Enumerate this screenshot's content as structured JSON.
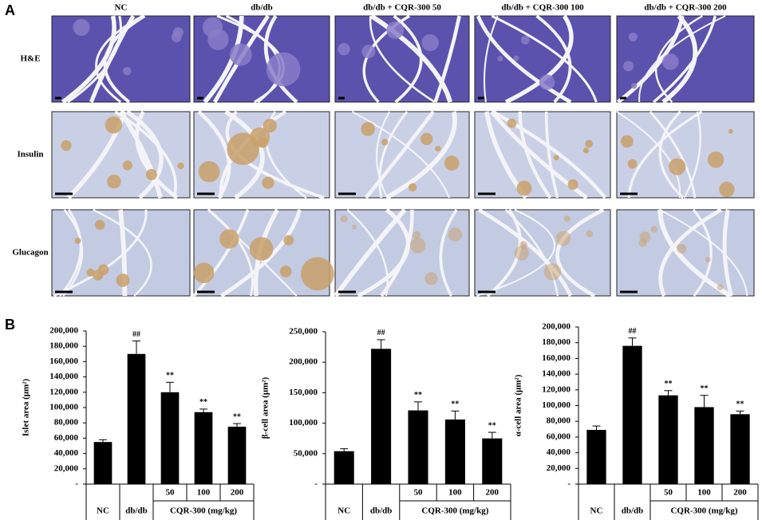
{
  "panel_a": {
    "label": "A",
    "columns": [
      "NC",
      "db/db",
      "db/db + CQR-300 50",
      "db/db + CQR-300 100",
      "db/db + CQR-300 200"
    ],
    "rows": [
      "H&E",
      "Insulin",
      "Glucagon"
    ]
  },
  "panel_b_label": "B",
  "chart_data": [
    {
      "type": "bar",
      "ylabel": "Islet area (μm²)",
      "color": "#000000",
      "categories": [
        "NC",
        "db/db",
        "50",
        "100",
        "200"
      ],
      "group_label": "CQR-300 (mg/kg)",
      "values": [
        55000,
        170000,
        120000,
        94000,
        75000
      ],
      "errors": [
        3000,
        17000,
        13000,
        4000,
        4000
      ],
      "annotations": [
        null,
        "##",
        "**",
        "**",
        "**"
      ],
      "ylim": [
        0,
        200000
      ],
      "yticks": [
        {
          "value": 0,
          "label": "-"
        },
        {
          "value": 20000,
          "label": "20,000"
        },
        {
          "value": 40000,
          "label": "40,000"
        },
        {
          "value": 60000,
          "label": "60,000"
        },
        {
          "value": 80000,
          "label": "80,000"
        },
        {
          "value": 100000,
          "label": "100,000"
        },
        {
          "value": 120000,
          "label": "120,000"
        },
        {
          "value": 140000,
          "label": "140,000"
        },
        {
          "value": 160000,
          "label": "160,000"
        },
        {
          "value": 180000,
          "label": "180,000"
        },
        {
          "value": 200000,
          "label": "200,000"
        }
      ]
    },
    {
      "type": "bar",
      "ylabel": "β-cell area (μm²)",
      "color": "#000000",
      "categories": [
        "NC",
        "db/db",
        "50",
        "100",
        "200"
      ],
      "group_label": "CQR-300 (mg/kg)",
      "values": [
        54000,
        222000,
        121000,
        106000,
        75000
      ],
      "errors": [
        4000,
        15000,
        14000,
        14000,
        10000
      ],
      "annotations": [
        null,
        "##",
        "**",
        "**",
        "**"
      ],
      "ylim": [
        0,
        250000
      ],
      "yticks": [
        {
          "value": 0,
          "label": "-"
        },
        {
          "value": 50000,
          "label": "50,000"
        },
        {
          "value": 100000,
          "label": "100,000"
        },
        {
          "value": 150000,
          "label": "150,000"
        },
        {
          "value": 200000,
          "label": "200,000"
        },
        {
          "value": 250000,
          "label": "250,000"
        }
      ]
    },
    {
      "type": "bar",
      "ylabel": "α-cell area (μm²)",
      "color": "#000000",
      "categories": [
        "NC",
        "db/db",
        "50",
        "100",
        "200"
      ],
      "group_label": "CQR-300 (mg/kg)",
      "values": [
        69000,
        176000,
        113000,
        98000,
        89000
      ],
      "errors": [
        5000,
        10000,
        6000,
        15000,
        4000
      ],
      "annotations": [
        null,
        "##",
        "**",
        "**",
        "**"
      ],
      "ylim": [
        0,
        200000
      ],
      "yticks": [
        {
          "value": 0,
          "label": "-"
        },
        {
          "value": 20000,
          "label": "20,000"
        },
        {
          "value": 40000,
          "label": "40,000"
        },
        {
          "value": 60000,
          "label": "60,000"
        },
        {
          "value": 80000,
          "label": "80,000"
        },
        {
          "value": 100000,
          "label": "100,000"
        },
        {
          "value": 120000,
          "label": "120,000"
        },
        {
          "value": 140000,
          "label": "140,000"
        },
        {
          "value": 160000,
          "label": "160,000"
        },
        {
          "value": 180000,
          "label": "180,000"
        },
        {
          "value": 200000,
          "label": "200,000"
        }
      ]
    }
  ]
}
